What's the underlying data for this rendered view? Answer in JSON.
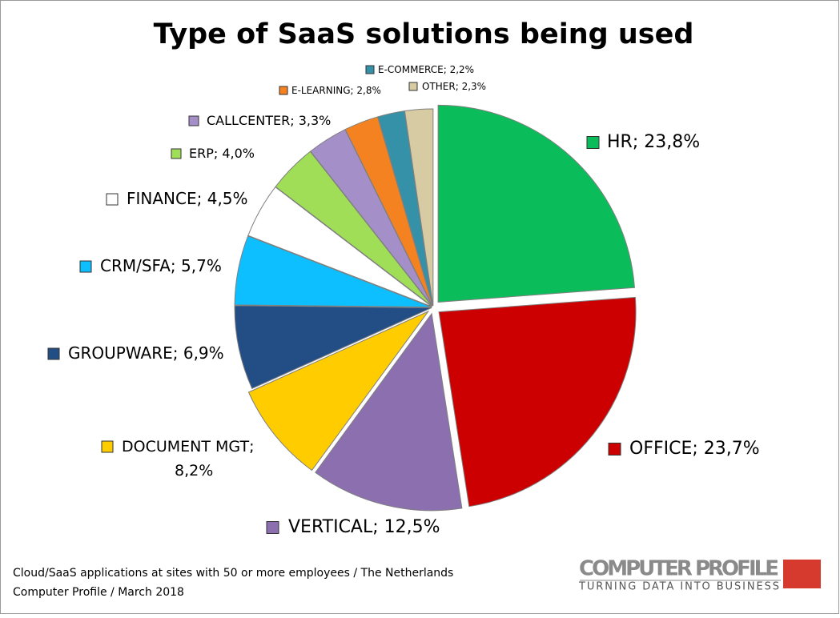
{
  "chart_data": {
    "type": "pie",
    "title": "Type of SaaS solutions being used",
    "categories": [
      "HR",
      "OFFICE",
      "VERTICAL",
      "DOCUMENT MGT",
      "GROUPWARE",
      "CRM/SFA",
      "FINANCE",
      "ERP",
      "CALLCENTER",
      "E-LEARNING",
      "E-COMMERCE",
      "OTHER"
    ],
    "values": [
      23.8,
      23.7,
      12.5,
      8.2,
      6.9,
      5.7,
      4.5,
      4.0,
      3.3,
      2.8,
      2.2,
      2.3
    ],
    "value_labels": [
      "23,8%",
      "23,7%",
      "12,5%",
      "8,2%",
      "6,9%",
      "5,7%",
      "4,5%",
      "4,0%",
      "3,3%",
      "2,8%",
      "2,2%",
      "2,3%"
    ],
    "label_separator": "; ",
    "colors": [
      "#0bbd5a",
      "#cc0000",
      "#8b6faf",
      "#ffcc00",
      "#234e85",
      "#0dbfff",
      "#ffffff",
      "#a0de58",
      "#a58fc8",
      "#f58220",
      "#3591a8",
      "#d6cba3"
    ],
    "notes": [
      "Cloud/SaaS applications at sites with 50 or more employees / The Netherlands",
      "Computer Profile / March 2018"
    ],
    "logo": {
      "name": "COMPUTER PROFILE",
      "tagline": "TURNING DATA INTO BUSINESS"
    }
  }
}
